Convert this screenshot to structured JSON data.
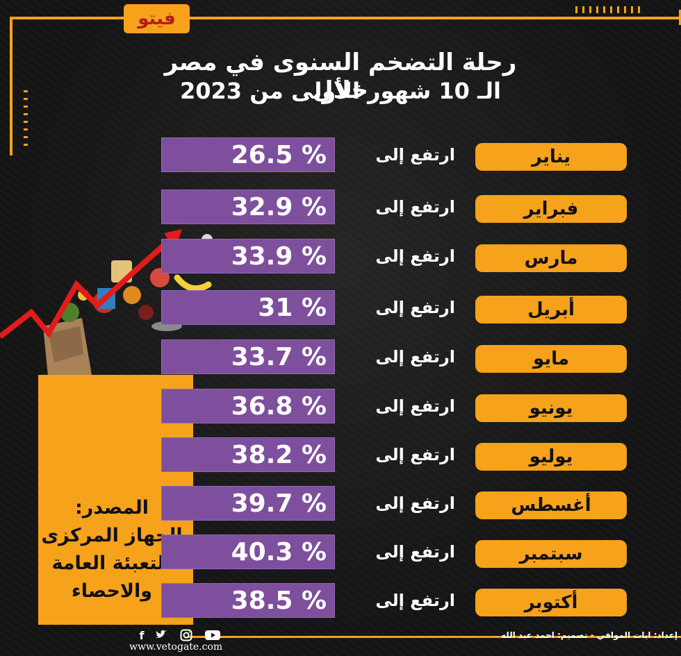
{
  "brand": {
    "logo_text": "فيتو",
    "accent": "#f7a21b",
    "value_bg": "#7d4f9d",
    "logo_red": "#b31b1b"
  },
  "title": {
    "line1": "رحلة التضخم السنوى في مصر خلال",
    "line2": "الـ 10 شهور الأولى من 2023"
  },
  "verb_text": "ارتفع إلى",
  "rows": [
    {
      "month": "يناير",
      "value": "26.5 %"
    },
    {
      "month": "فبراير",
      "value": "32.9 %"
    },
    {
      "month": "مارس",
      "value": "33.9 %"
    },
    {
      "month": "أبريل",
      "value": "31 %"
    },
    {
      "month": "مايو",
      "value": "33.7 %"
    },
    {
      "month": "يونيو",
      "value": "36.8 %"
    },
    {
      "month": "يوليو",
      "value": "38.2 %"
    },
    {
      "month": "أغسطس",
      "value": "39.7 %"
    },
    {
      "month": "سبتمبر",
      "value": "40.3 %"
    },
    {
      "month": "أكتوبر",
      "value": "38.5 %"
    }
  ],
  "source": {
    "label": "المصدر:",
    "line1": "الجهاز المركزى",
    "line2": "للتعبئة العامة",
    "line3": "والاحصاء"
  },
  "footer": {
    "website": "www.vetogate.com",
    "credits": "إعداد: ايات الموافي  -  تصميم: احمد عبد الله",
    "social_icons": [
      "facebook-icon",
      "twitter-icon",
      "instagram-icon",
      "youtube-icon"
    ]
  }
}
